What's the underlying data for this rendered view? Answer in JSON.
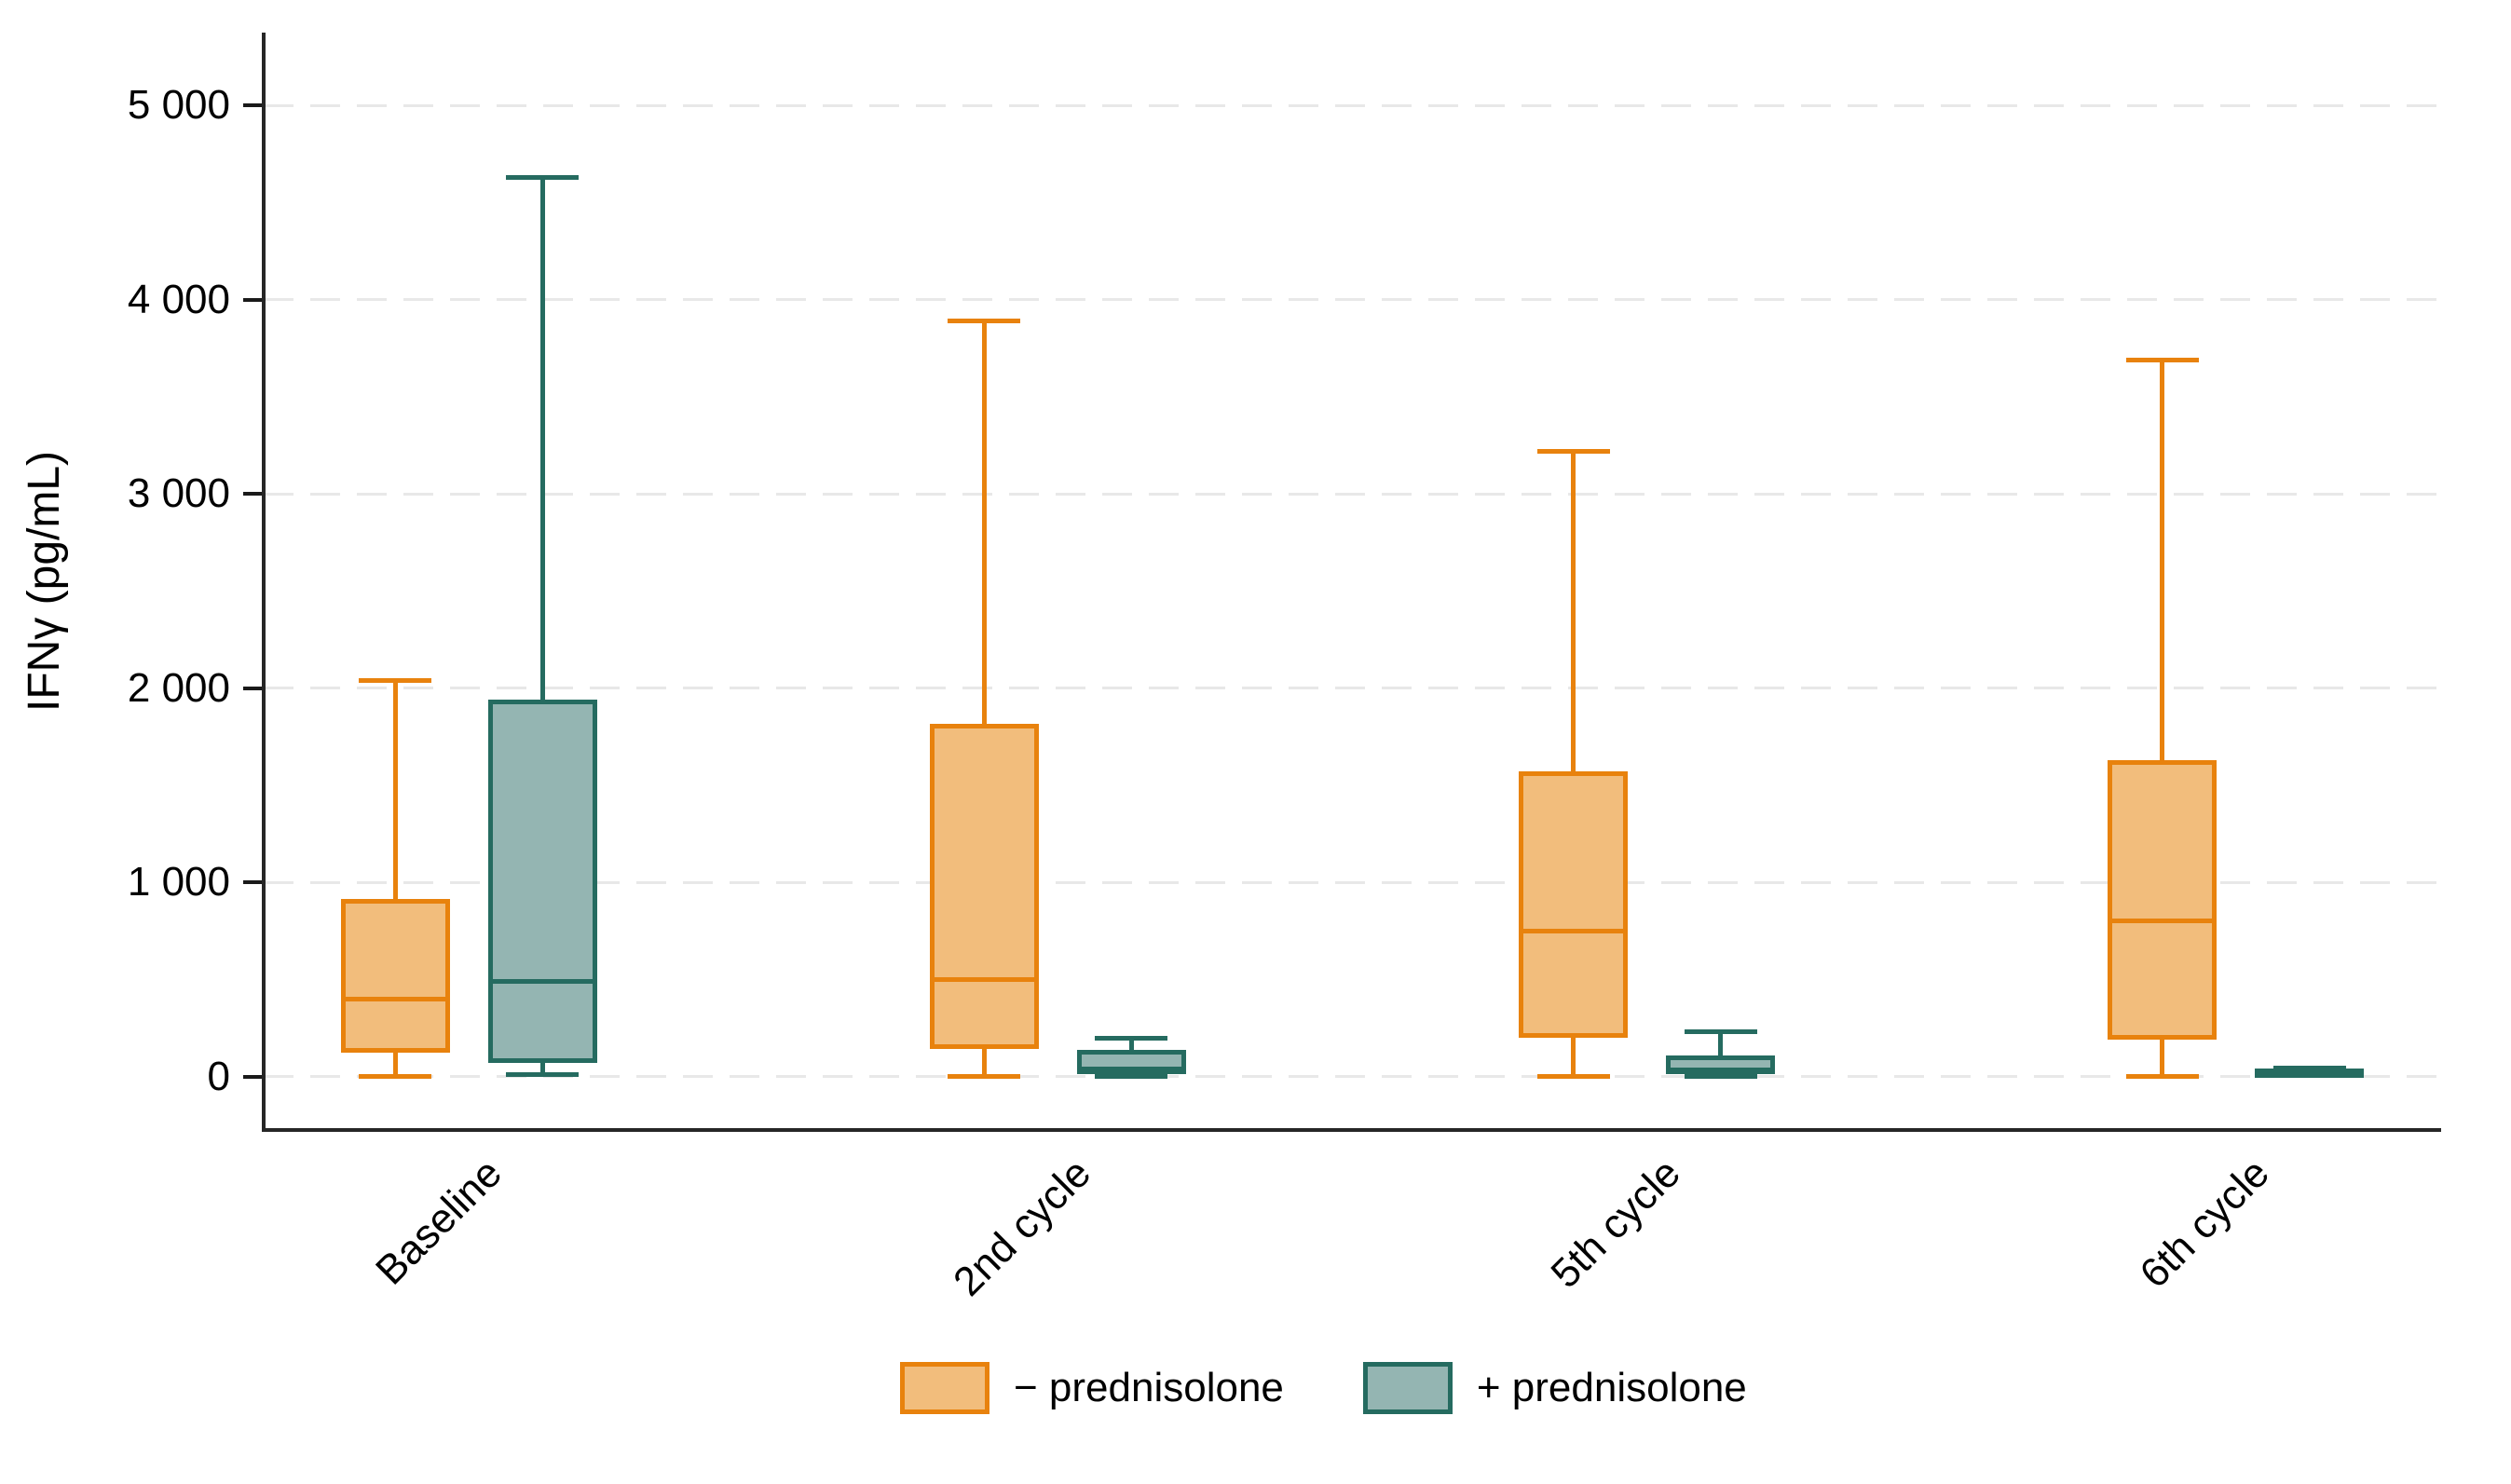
{
  "chart_data": {
    "type": "box",
    "title": "",
    "ylabel": "IFNγ (pg/mL)",
    "xlabel": "",
    "categories": [
      "Baseline",
      "2nd cycle",
      "5th cycle",
      "6th cycle"
    ],
    "ylim": [
      0,
      5000
    ],
    "grid": "horizontal-dashed",
    "legend_position": "bottom-center",
    "y_ticks": [
      {
        "value": 0,
        "label": "0"
      },
      {
        "value": 1000,
        "label": "1 000"
      },
      {
        "value": 2000,
        "label": "2 000"
      },
      {
        "value": 3000,
        "label": "3 000"
      },
      {
        "value": 4000,
        "label": "4 000"
      },
      {
        "value": 5000,
        "label": "5 000"
      }
    ],
    "series": [
      {
        "name": "− prednisolone",
        "border_color": "#E8820D",
        "fill_color": "#F2BD7C",
        "boxes": [
          {
            "category": "Baseline",
            "whislo": 0,
            "q1": 120,
            "med": 400,
            "q3": 915,
            "whishi": 2040
          },
          {
            "category": "2nd cycle",
            "whislo": 0,
            "q1": 140,
            "med": 500,
            "q3": 1815,
            "whishi": 3890
          },
          {
            "category": "5th cycle",
            "whislo": 0,
            "q1": 200,
            "med": 750,
            "q3": 1570,
            "whishi": 3220
          },
          {
            "category": "6th cycle",
            "whislo": 0,
            "q1": 190,
            "med": 800,
            "q3": 1630,
            "whishi": 3690
          }
        ]
      },
      {
        "name": "+ prednisolone",
        "border_color": "#256B60",
        "fill_color": "#94B5B2",
        "boxes": [
          {
            "category": "Baseline",
            "whislo": 10,
            "q1": 70,
            "med": 490,
            "q3": 1940,
            "whishi": 4630
          },
          {
            "category": "2nd cycle",
            "whislo": 0,
            "q1": 10,
            "med": 40,
            "q3": 135,
            "whishi": 195
          },
          {
            "category": "5th cycle",
            "whislo": 0,
            "q1": 10,
            "med": 30,
            "q3": 110,
            "whishi": 230
          },
          {
            "category": "6th cycle",
            "whislo": 0,
            "q1": 5,
            "med": 15,
            "q3": 40,
            "whishi": 45
          }
        ]
      }
    ],
    "legend": [
      {
        "label": "− prednisolone",
        "border_color": "#E8820D",
        "fill_color": "#F2BD7C"
      },
      {
        "label": "+ prednisolone",
        "border_color": "#256B60",
        "fill_color": "#94B5B2"
      }
    ]
  }
}
